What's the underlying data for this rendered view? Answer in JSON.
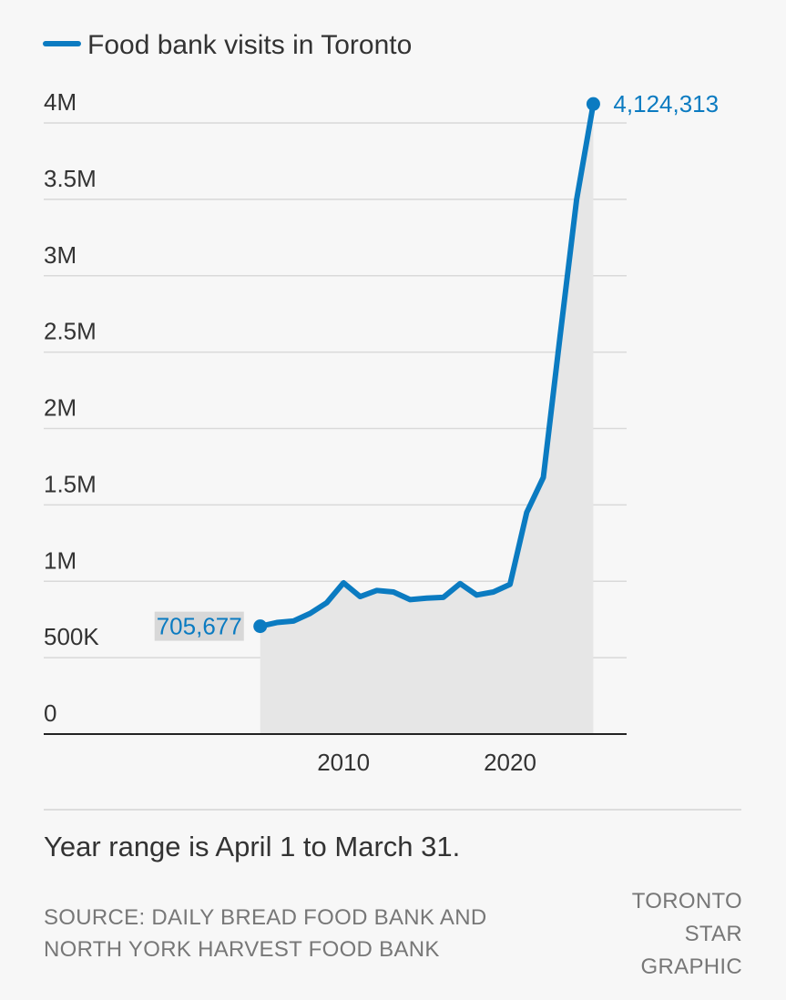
{
  "chart_data": {
    "type": "area",
    "title": "",
    "xlabel": "",
    "ylabel": "",
    "legend": [
      {
        "name": "Food bank visits in Toronto",
        "color": "#0b7bc1"
      }
    ],
    "series": [
      {
        "name": "Food bank visits in Toronto",
        "color": "#0b7bc1",
        "x": [
          2005,
          2006,
          2007,
          2008,
          2009,
          2010,
          2011,
          2012,
          2013,
          2014,
          2015,
          2016,
          2017,
          2018,
          2019,
          2020,
          2021,
          2022,
          2023,
          2024,
          2025
        ],
        "values": [
          705677,
          730000,
          740000,
          790000,
          860000,
          990000,
          900000,
          940000,
          930000,
          880000,
          890000,
          895000,
          985000,
          910000,
          930000,
          980000,
          1450000,
          1680000,
          2600000,
          3500000,
          4124313
        ]
      }
    ],
    "xlim": [
      1992,
      2027
    ],
    "xticks": [
      {
        "value": 2010,
        "label": "2010"
      },
      {
        "value": 2020,
        "label": "2020"
      }
    ],
    "ylim": [
      0,
      4000000
    ],
    "yticks": [
      {
        "value": 0,
        "label": "0"
      },
      {
        "value": 500000,
        "label": "500K"
      },
      {
        "value": 1000000,
        "label": "1M"
      },
      {
        "value": 1500000,
        "label": "1.5M"
      },
      {
        "value": 2000000,
        "label": "2M"
      },
      {
        "value": 2500000,
        "label": "2.5M"
      },
      {
        "value": 3000000,
        "label": "3M"
      },
      {
        "value": 3500000,
        "label": "3.5M"
      },
      {
        "value": 4000000,
        "label": "4M"
      }
    ],
    "annotations": [
      {
        "x": 2005,
        "y": 705677,
        "text": "705,677",
        "position": "left"
      },
      {
        "x": 2025,
        "y": 4124313,
        "text": "4,124,313",
        "position": "right"
      }
    ],
    "grid": true,
    "area_fill": "#e6e6e6",
    "legend_position": "top-left"
  },
  "footer": {
    "note": "Year range is April 1 to March 31.",
    "source_line1": "SOURCE: DAILY BREAD FOOD BANK AND",
    "source_line2": "NORTH YORK HARVEST FOOD BANK",
    "credit_line1": "TORONTO",
    "credit_line2": "STAR",
    "credit_line3": "GRAPHIC"
  }
}
